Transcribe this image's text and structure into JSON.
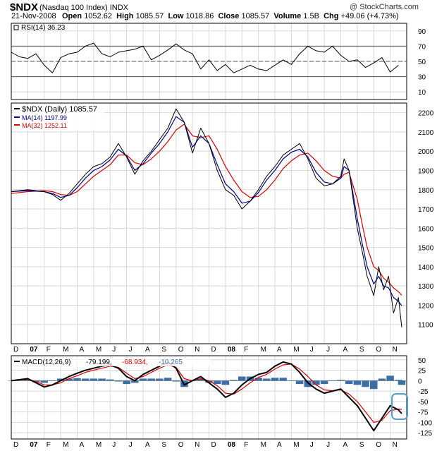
{
  "header": {
    "symbol": "$NDX",
    "name": "(Nasdaq 100 Index)",
    "exchange": "INDX",
    "watermark": "@ StockCharts.com",
    "date": "21-Nov-2008",
    "open_label": "Open",
    "open": "1052.62",
    "high_label": "High",
    "high": "1085.57",
    "low_label": "Low",
    "low": "1018.86",
    "close_label": "Close",
    "close": "1085.57",
    "volume_label": "Volume",
    "volume": "1.5B",
    "chg_label": "Chg",
    "chg": "+49.06 (+4.73%)"
  },
  "colors": {
    "price": "#000000",
    "ma14": "#00008b",
    "ma32": "#e00000",
    "macd": "#000000",
    "signal": "#e00000",
    "histogram": "#3b6fa8",
    "highlight": "#4f9fd0",
    "grid": "#d8d8d8"
  },
  "chart_data": [
    {
      "type": "line",
      "panel": "rsi",
      "legend": "RSI(14) 36.23",
      "ylim": [
        0,
        100
      ],
      "y_ticks": [
        10,
        30,
        50,
        70,
        90
      ],
      "reference_lines": [
        30,
        50,
        70
      ],
      "t": [
        0,
        0.5,
        1,
        1.5,
        2,
        2.5,
        3,
        3.5,
        4,
        4.5,
        5,
        5.5,
        6,
        6.5,
        7,
        7.5,
        8,
        8.5,
        9,
        9.5,
        10,
        10.5,
        11,
        11.5,
        12,
        12.5,
        13,
        13.5,
        14,
        14.5,
        15,
        15.5,
        16,
        16.5,
        17,
        17.5,
        18,
        18.5,
        19,
        19.5,
        20,
        20.5,
        21,
        21.5,
        22,
        22.5,
        23,
        23.5
      ],
      "values": [
        62,
        56,
        54,
        60,
        45,
        35,
        55,
        60,
        62,
        70,
        74,
        60,
        56,
        62,
        64,
        66,
        70,
        52,
        58,
        65,
        73,
        65,
        60,
        40,
        52,
        38,
        46,
        35,
        40,
        45,
        40,
        38,
        45,
        52,
        46,
        60,
        70,
        64,
        62,
        70,
        58,
        50,
        52,
        42,
        48,
        55,
        36,
        45
      ]
    },
    {
      "type": "line",
      "panel": "price",
      "legend": "$NDX (Daily) 1085.57",
      "ylim": [
        1000,
        2250
      ],
      "y_ticks": [
        1100,
        1200,
        1300,
        1400,
        1500,
        1600,
        1700,
        1800,
        1900,
        2000,
        2100,
        2200
      ],
      "x_ticks": [
        "D",
        "07",
        "F",
        "M",
        "A",
        "M",
        "J",
        "J",
        "A",
        "S",
        "O",
        "N",
        "D",
        "08",
        "F",
        "M",
        "A",
        "M",
        "J",
        "J",
        "A",
        "S",
        "O",
        "N"
      ],
      "t": [
        0,
        1,
        2,
        2.5,
        3,
        3.5,
        4,
        4.5,
        5,
        5.5,
        6,
        6.5,
        7,
        7.5,
        8,
        8.5,
        9,
        9.5,
        10,
        10.5,
        11,
        11.5,
        12,
        12.5,
        13,
        13.5,
        14,
        14.5,
        15,
        15.5,
        16,
        16.5,
        17,
        17.5,
        18,
        18.5,
        19,
        19.5,
        20,
        20.2,
        20.5,
        21,
        21.3,
        21.6,
        22,
        22.3,
        22.6,
        22.9,
        23.2,
        23.5,
        23.7
      ],
      "series": [
        {
          "name": "$NDX",
          "values": [
            1790,
            1800,
            1790,
            1775,
            1745,
            1780,
            1830,
            1880,
            1920,
            1935,
            1970,
            2040,
            1970,
            1880,
            1950,
            2000,
            2060,
            2120,
            2220,
            2150,
            1990,
            2120,
            2040,
            1900,
            1800,
            1770,
            1700,
            1740,
            1800,
            1870,
            1920,
            1980,
            2010,
            2040,
            1960,
            1860,
            1820,
            1830,
            1870,
            1960,
            1900,
            1600,
            1480,
            1350,
            1250,
            1400,
            1280,
            1350,
            1160,
            1240,
            1085
          ]
        },
        {
          "name": "MA(14) 1197.99",
          "values": [
            1790,
            1795,
            1790,
            1780,
            1760,
            1770,
            1810,
            1860,
            1900,
            1920,
            1955,
            2010,
            1975,
            1900,
            1935,
            1990,
            2040,
            2100,
            2180,
            2150,
            2020,
            2080,
            2040,
            1930,
            1830,
            1790,
            1730,
            1740,
            1785,
            1850,
            1900,
            1960,
            1995,
            2010,
            1970,
            1890,
            1840,
            1830,
            1860,
            1920,
            1900,
            1650,
            1520,
            1400,
            1310,
            1350,
            1300,
            1290,
            1240,
            1220,
            1198
          ]
        },
        {
          "name": "MA(32) 1252.11",
          "values": [
            1780,
            1790,
            1795,
            1790,
            1775,
            1770,
            1790,
            1830,
            1870,
            1900,
            1930,
            1980,
            1980,
            1940,
            1930,
            1960,
            2000,
            2050,
            2110,
            2140,
            2080,
            2070,
            2080,
            2010,
            1920,
            1850,
            1790,
            1760,
            1765,
            1800,
            1850,
            1910,
            1950,
            1980,
            1990,
            1950,
            1900,
            1870,
            1860,
            1880,
            1890,
            1750,
            1620,
            1500,
            1400,
            1380,
            1340,
            1320,
            1290,
            1270,
            1252
          ]
        }
      ]
    },
    {
      "type": "line",
      "panel": "macd",
      "legend_prefix": "MACD(12,26,9)",
      "legend_macd": "-79.199,",
      "legend_signal": "-68.934,",
      "legend_hist": "-10.265",
      "ylim": [
        -140,
        60
      ],
      "y_ticks": [
        50,
        25,
        0,
        -25,
        -50,
        -75,
        -100,
        -125
      ],
      "x_ticks": [
        "D",
        "07",
        "F",
        "M",
        "A",
        "M",
        "J",
        "J",
        "A",
        "S",
        "O",
        "N",
        "D",
        "08",
        "F",
        "M",
        "A",
        "M",
        "J",
        "J",
        "A",
        "S",
        "O",
        "N"
      ],
      "t": [
        0,
        1,
        1.5,
        2,
        2.5,
        3,
        3.5,
        4,
        4.5,
        5,
        5.5,
        6,
        6.5,
        7,
        7.5,
        8,
        8.5,
        9,
        9.5,
        10,
        10.5,
        11,
        11.5,
        12,
        12.5,
        13,
        13.5,
        14,
        14.5,
        15,
        15.5,
        16,
        16.5,
        17,
        17.5,
        18,
        18.5,
        19,
        19.5,
        20,
        20.5,
        21,
        21.5,
        22,
        22.5,
        23,
        23.5,
        23.7
      ],
      "series": [
        {
          "name": "MACD",
          "values": [
            0,
            5,
            -5,
            -15,
            -10,
            0,
            10,
            18,
            25,
            30,
            35,
            38,
            30,
            10,
            0,
            15,
            25,
            35,
            45,
            30,
            -10,
            0,
            10,
            -5,
            -20,
            -40,
            -30,
            -10,
            5,
            15,
            20,
            35,
            45,
            40,
            20,
            -5,
            -20,
            -30,
            -25,
            -20,
            -40,
            -60,
            -90,
            -120,
            -90,
            -60,
            -70,
            -79
          ]
        },
        {
          "name": "Signal",
          "values": [
            0,
            3,
            -2,
            -10,
            -10,
            -5,
            5,
            12,
            20,
            25,
            30,
            35,
            32,
            18,
            5,
            10,
            20,
            30,
            38,
            32,
            5,
            0,
            5,
            0,
            -12,
            -30,
            -32,
            -20,
            -5,
            8,
            15,
            28,
            38,
            40,
            28,
            10,
            -10,
            -22,
            -24,
            -22,
            -32,
            -50,
            -75,
            -100,
            -95,
            -72,
            -68,
            -69
          ]
        }
      ],
      "histogram": [
        0,
        2,
        -3,
        -5,
        0,
        5,
        5,
        6,
        5,
        5,
        5,
        3,
        -2,
        -8,
        -5,
        5,
        5,
        5,
        7,
        -2,
        -15,
        0,
        5,
        -5,
        -8,
        -10,
        2,
        10,
        10,
        7,
        5,
        7,
        7,
        0,
        -8,
        -15,
        -10,
        -8,
        -1,
        2,
        -8,
        -10,
        -15,
        -20,
        5,
        12,
        2,
        -10
      ]
    }
  ]
}
